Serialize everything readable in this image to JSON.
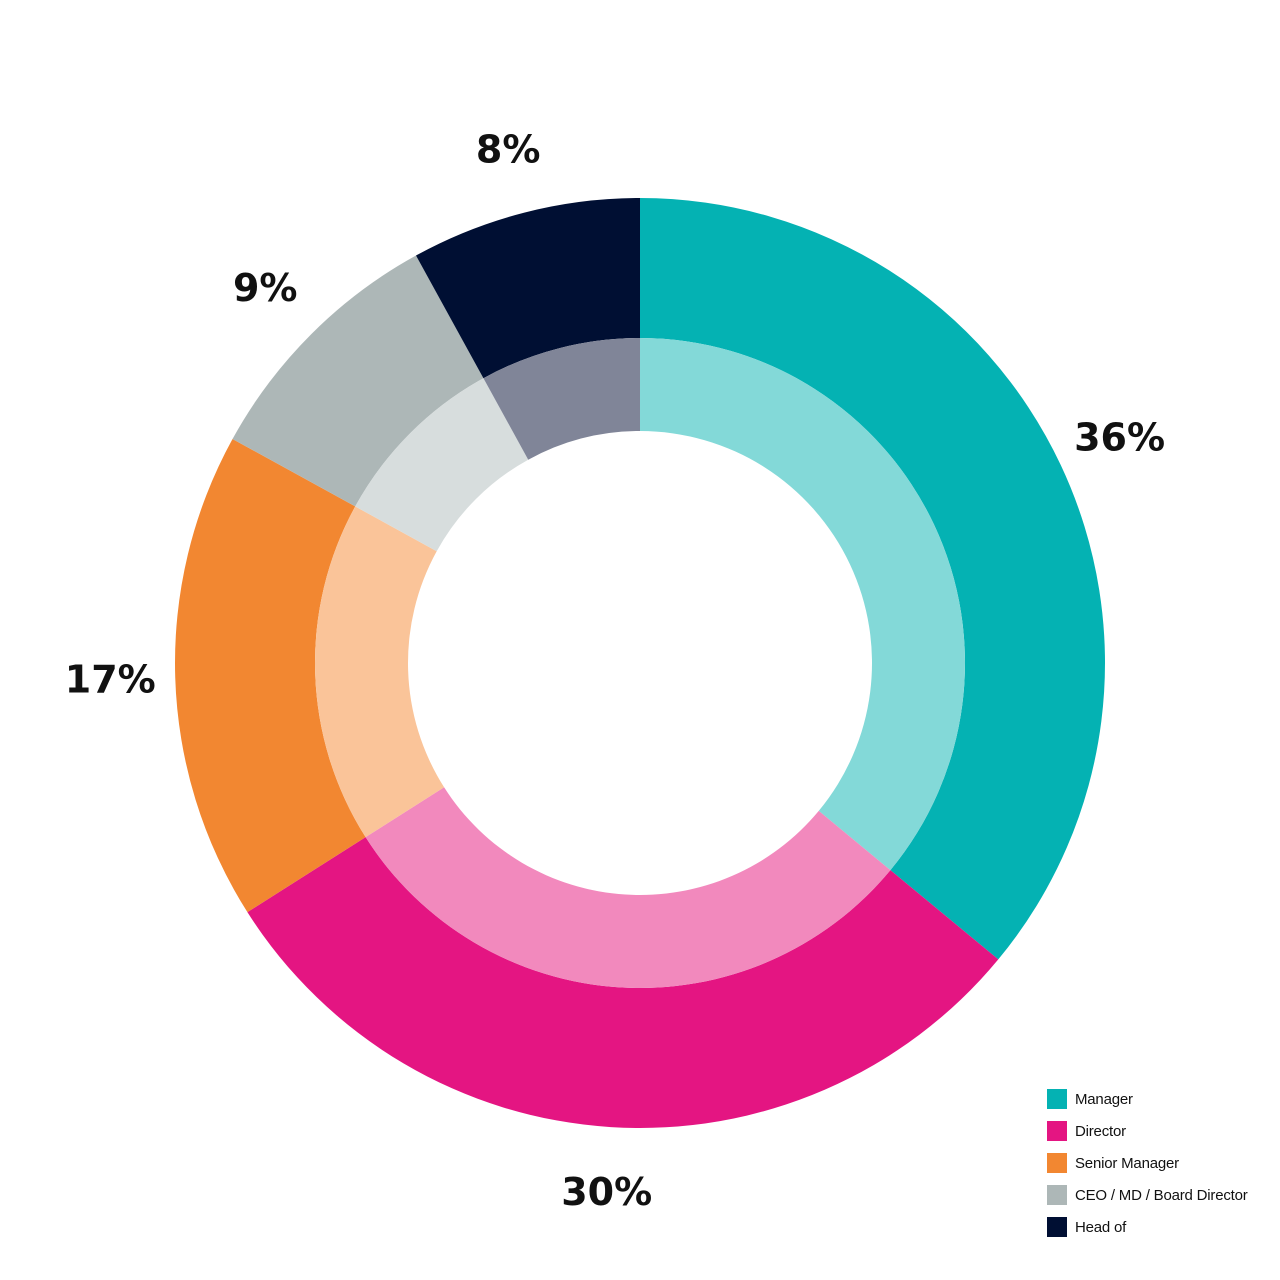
{
  "chart_data": {
    "type": "pie",
    "variant": "donut",
    "start": "top",
    "direction": "clockwise",
    "series": [
      {
        "name": "Manager",
        "value": 36,
        "label": "36%",
        "color": "#04b2b3",
        "inner_color": "#83d9d8"
      },
      {
        "name": "Director",
        "value": 30,
        "label": "30%",
        "color": "#e41582",
        "inner_color": "#f289bd"
      },
      {
        "name": "Senior Manager",
        "value": 17,
        "label": "17%",
        "color": "#f28731",
        "inner_color": "#fac499"
      },
      {
        "name": "CEO / MD / Board Director",
        "value": 9,
        "label": "9%",
        "color": "#adb7b7",
        "inner_color": "#d7dddd"
      },
      {
        "name": "Head of",
        "value": 8,
        "label": "8%",
        "color": "#000f33",
        "inner_color": "#808598"
      }
    ],
    "legend_position": "bottom-right"
  }
}
